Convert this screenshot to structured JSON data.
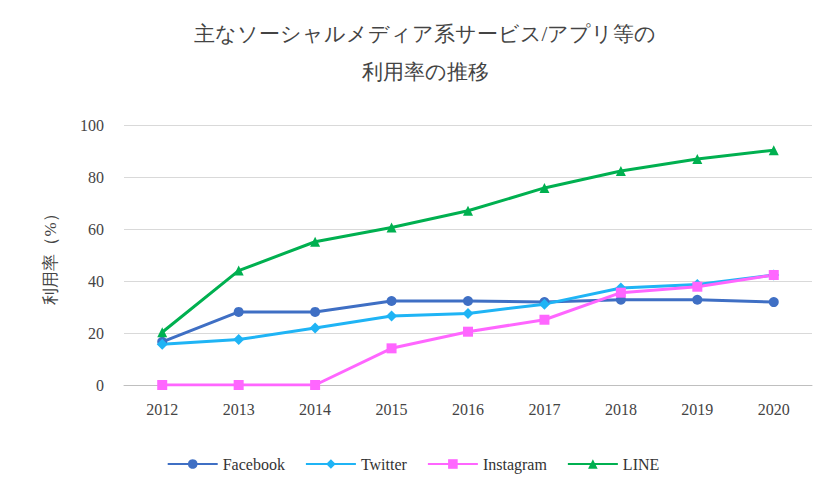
{
  "chart_data": {
    "type": "line",
    "title": "主なソーシャルメディア系サービス/アプリ等の\n利用率の推移",
    "y_label": "利用率（%）",
    "categories": [
      "2012",
      "2013",
      "2014",
      "2015",
      "2016",
      "2017",
      "2018",
      "2019",
      "2020"
    ],
    "series": [
      {
        "name": "Facebook",
        "color": "#3f6fc4",
        "marker": "circle",
        "values": [
          16.6,
          28.1,
          28.1,
          32.3,
          32.3,
          31.9,
          32.8,
          32.8,
          31.9
        ]
      },
      {
        "name": "Twitter",
        "color": "#1fb4f5",
        "marker": "diamond",
        "values": [
          15.7,
          17.5,
          21.9,
          26.5,
          27.5,
          31.1,
          37.3,
          38.7,
          42.3
        ]
      },
      {
        "name": "Instagram",
        "color": "#ff66ff",
        "marker": "square",
        "values": [
          0,
          0,
          0,
          14.1,
          20.5,
          25.1,
          35.5,
          37.8,
          42.3
        ]
      },
      {
        "name": "LINE",
        "color": "#00b050",
        "marker": "triangle",
        "values": [
          20.3,
          44.0,
          55.1,
          60.6,
          67.0,
          75.8,
          82.3,
          86.9,
          90.3
        ]
      }
    ],
    "ylim": [
      0,
      100
    ],
    "yticks": [
      0,
      20,
      40,
      60,
      80,
      100
    ],
    "grid": true,
    "legend": "bottom"
  }
}
